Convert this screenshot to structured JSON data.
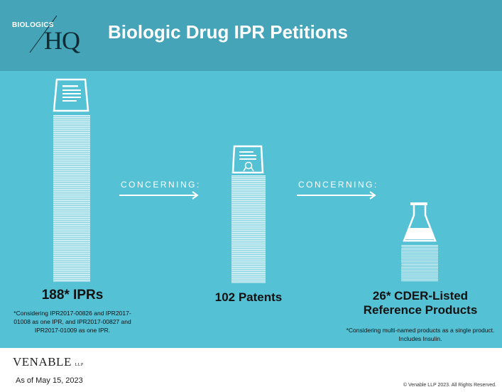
{
  "header": {
    "logo_top": "BIOLOGICS",
    "logo_bottom": "HQ",
    "title": "Biologic Drug IPR Petitions"
  },
  "flow": {
    "concerning_label_1": "CONCERNING:",
    "concerning_label_2": "CONCERNING:"
  },
  "columns": [
    {
      "label": "188* IPRs",
      "note": "*Considering IPR2017-00826 and IPR2017-01008 as one IPR, and IPR2017-00827 and IPR2017-01009 as one IPR.",
      "icon": "document-icon",
      "stack_lines": 188
    },
    {
      "label": "102 Patents",
      "note": "",
      "icon": "patent-seal-icon",
      "stack_lines": 102
    },
    {
      "label_line1": "26* CDER-Listed",
      "label_line2": "Reference Products",
      "note": "*Considering multi-named products as a single product.  Includes Insulin.",
      "icon": "flask-icon",
      "stack_lines": 26
    }
  ],
  "footer": {
    "brand": "VENABLE",
    "brand_suffix": "LLP",
    "as_of": "As of May 15, 2023",
    "copyright": "© Venable LLP 2023. All Rights Reserved."
  },
  "colors": {
    "header_bg": "#45a4b7",
    "panel_bg": "#55c1d5",
    "foreground": "#ffffff",
    "text_dark": "#111111"
  }
}
